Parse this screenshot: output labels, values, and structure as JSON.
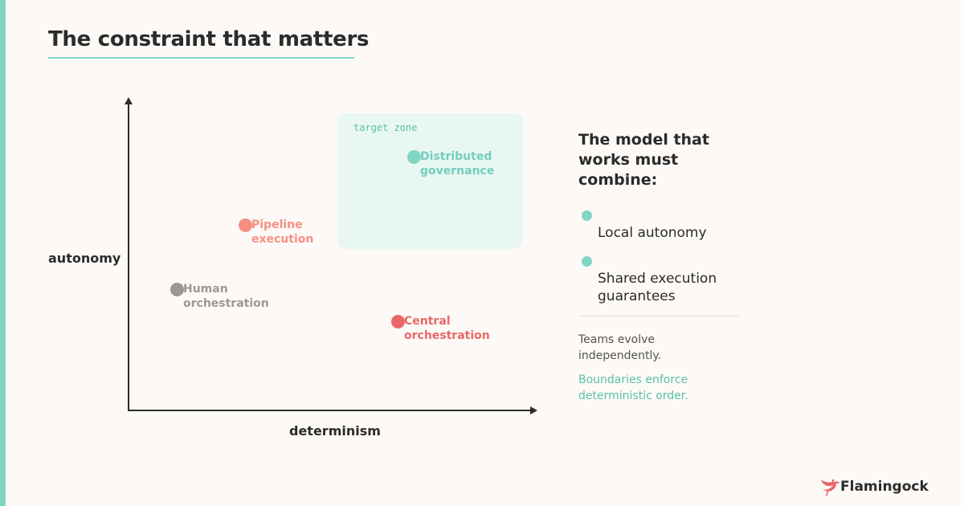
{
  "title": "The constraint that matters",
  "diagram": {
    "y_axis_label": "autonomy",
    "x_axis_label": "determinism",
    "target_zone_label": "target zone",
    "points": [
      {
        "label": "Distributed\ngovernance",
        "color": "#7fd5c6"
      },
      {
        "label": "Pipeline\nexecution",
        "color": "#f59084"
      },
      {
        "label": "Human\norchestration",
        "color": "#9a9896"
      },
      {
        "label": "Central\norchestration",
        "color": "#ea6767"
      }
    ]
  },
  "side_panel": {
    "title": "The model that\nworks must\ncombine:",
    "bullets": [
      "Local autonomy",
      "Shared execution\nguarantees"
    ],
    "note_1": "Teams evolve\nindependently.",
    "note_2": "Boundaries enforce\ndeterministic order."
  },
  "brand": {
    "name": "Flamingock",
    "icon": "flamingo-icon",
    "color": "#ea6767"
  },
  "accent_color": "#7fd5c6"
}
